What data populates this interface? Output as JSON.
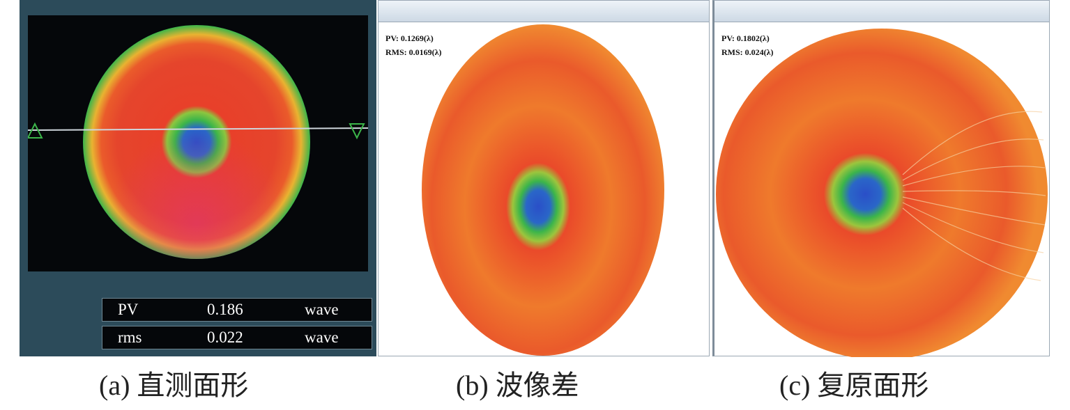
{
  "panel_a": {
    "readouts": [
      {
        "label": "PV",
        "value": "0.186",
        "unit": "wave"
      },
      {
        "label": "rms",
        "value": "0.022",
        "unit": "wave"
      }
    ]
  },
  "panel_b": {
    "window_title": "",
    "pv_text": "PV: 0.1269(λ)",
    "rms_text": "RMS: 0.0169(λ)"
  },
  "panel_c": {
    "window_title": "",
    "pv_text": "PV: 0.1802(λ)",
    "rms_text": "RMS: 0.024(λ)"
  },
  "captions": {
    "a": "(a) 直测面形",
    "b": "(b) 波像差",
    "c": "(c) 复原面形"
  },
  "colors": {
    "panel_bg": "#2c4b5a",
    "surface_red": "#e8402a",
    "surface_orange": "#ef7a2c",
    "surface_green": "#3cb54a",
    "surface_blue": "#2a4fc8"
  }
}
